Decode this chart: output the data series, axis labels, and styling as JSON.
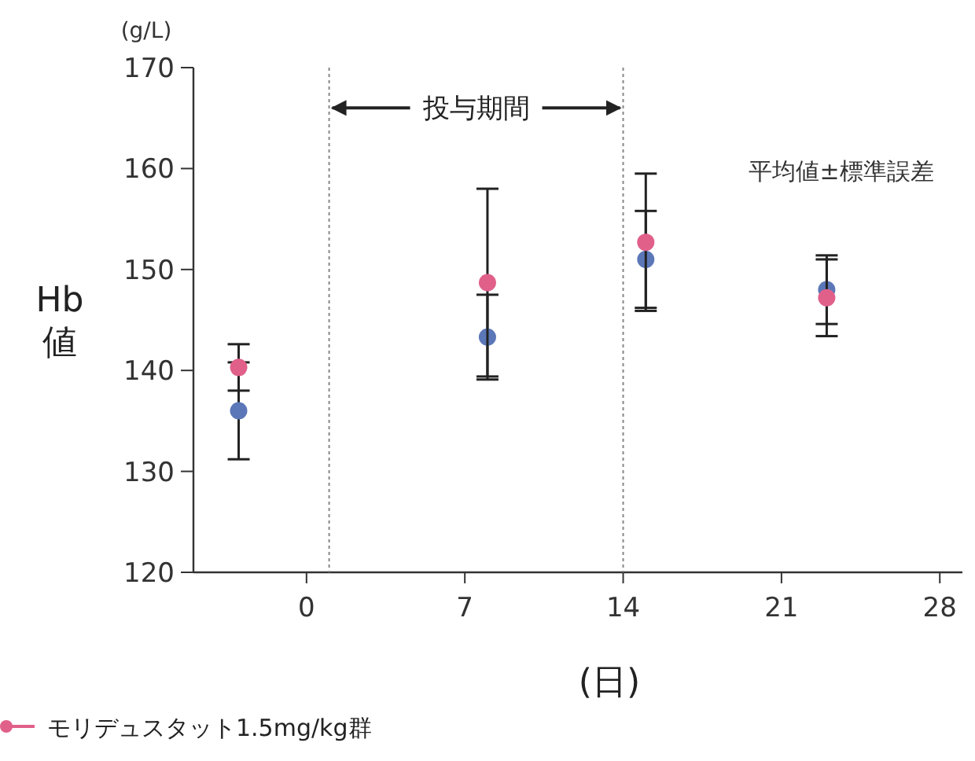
{
  "chart_data": {
    "type": "scatter",
    "xlabel": "(日)",
    "ylabel": "Hb\n値",
    "x": [
      -3,
      8,
      15,
      23
    ],
    "series": [
      {
        "name": "モリデュスタット1.5mg/kg群",
        "color": "#e0608a",
        "values": [
          140.3,
          148.7,
          152.7,
          147.2
        ],
        "errors": [
          2.3,
          9.3,
          6.8,
          3.8
        ]
      },
      {
        "color": "#5b77b8",
        "values": [
          136.0,
          143.3,
          151.0,
          148.0
        ],
        "errors": [
          4.8,
          4.2,
          4.8,
          3.4
        ]
      }
    ],
    "xlim": [
      -5,
      29
    ],
    "xticks": [
      0,
      7,
      14,
      21,
      28
    ],
    "ylim": [
      120,
      170
    ],
    "yticks": [
      120,
      130,
      140,
      150,
      160,
      170
    ],
    "ref_lines": [
      {
        "axis": "x",
        "value": 1,
        "color": "#888888",
        "line_style": "dotted"
      },
      {
        "axis": "x",
        "value": 14,
        "color": "#888888",
        "line_style": "dotted"
      }
    ],
    "annotations": [
      {
        "text": "投与期間",
        "x": 1,
        "y": 166
      },
      "平均値±標準誤差",
      "(g/L)"
    ],
    "marker": "circle",
    "grid": false,
    "legend": "bottom left"
  }
}
